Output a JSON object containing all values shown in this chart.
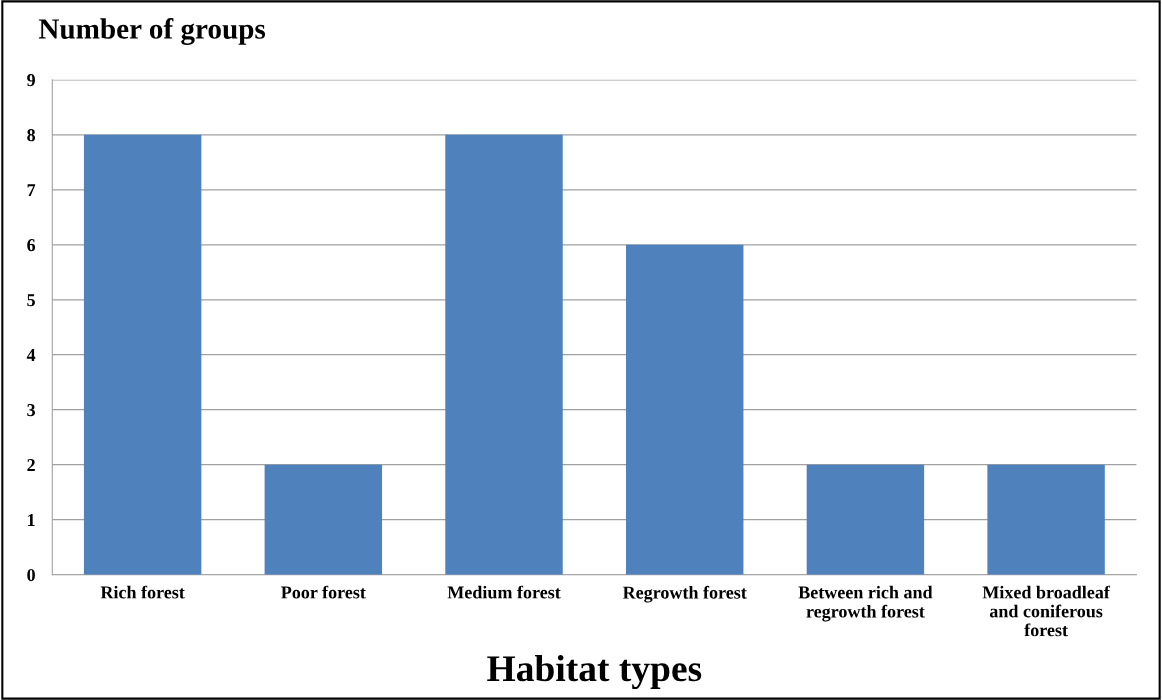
{
  "chart_data": {
    "type": "bar",
    "ylabel": "Number of groups",
    "xlabel": "Habitat types",
    "categories": [
      "Rich forest",
      "Poor forest",
      "Medium forest",
      "Regrowth forest",
      "Between rich and\nregrowth forest",
      "Mixed broadleaf\nand coniferous\nforest"
    ],
    "values": [
      8,
      2,
      8,
      6,
      2,
      2
    ],
    "color": "#4f81bd",
    "ylim": [
      0,
      9
    ],
    "yticks": [
      0,
      1,
      2,
      3,
      4,
      5,
      6,
      7,
      8,
      9
    ],
    "grid": "y",
    "legend": false
  }
}
